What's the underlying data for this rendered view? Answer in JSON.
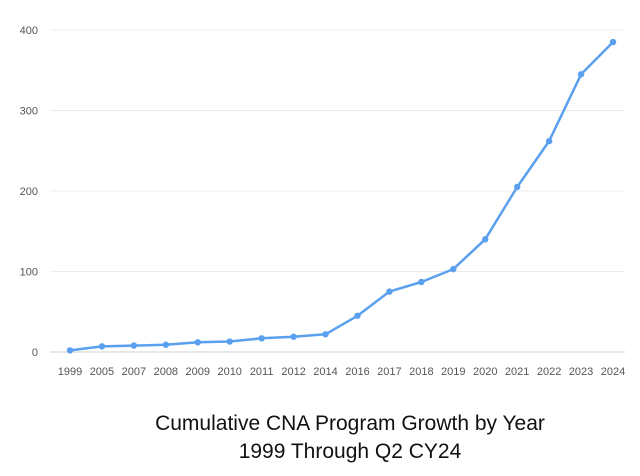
{
  "chart_data": {
    "type": "line",
    "title": "Cumulative CNA Program Growth by Year",
    "subtitle": "1999 Through Q2 CY24",
    "xlabel": "",
    "ylabel": "",
    "categories": [
      "1999",
      "2005",
      "2007",
      "2008",
      "2009",
      "2010",
      "2011",
      "2012",
      "2014",
      "2016",
      "2017",
      "2018",
      "2019",
      "2020",
      "2021",
      "2022",
      "2023",
      "2024"
    ],
    "series": [
      {
        "values": [
          2,
          7,
          8,
          9,
          12,
          13,
          17,
          19,
          22,
          45,
          75,
          87,
          103,
          140,
          205,
          262,
          345,
          385
        ]
      }
    ],
    "ylim": [
      0,
      400
    ],
    "yticks": [
      0,
      100,
      200,
      300,
      400
    ],
    "grid": true,
    "legend": "none",
    "colors": {
      "line": "#5aa0ee",
      "grid": "#ececec",
      "axis": "#cfcfcf"
    }
  }
}
